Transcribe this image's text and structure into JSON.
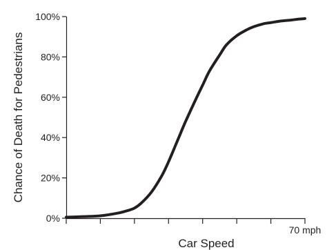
{
  "chart_data": {
    "type": "line",
    "xlabel": "Car Speed",
    "ylabel": "Chance of Death for Pedestrians",
    "xlim": [
      0,
      70
    ],
    "ylim": [
      0,
      100
    ],
    "x_ticks": [
      0,
      10,
      20,
      30,
      40,
      50,
      60,
      70
    ],
    "x_tick_labels": [
      "",
      "",
      "",
      "",
      "",
      "",
      "",
      "70 mph"
    ],
    "y_ticks": [
      0,
      20,
      40,
      60,
      80,
      100
    ],
    "y_tick_labels": [
      "0%",
      "20%",
      "40%",
      "60%",
      "80%",
      "100%"
    ],
    "grid": false,
    "series": [
      {
        "x": [
          0,
          5,
          10,
          15,
          18,
          20,
          22,
          25,
          28,
          30,
          33,
          35,
          38,
          40,
          42,
          45,
          47,
          50,
          53,
          55,
          58,
          60,
          63,
          66,
          68,
          70
        ],
        "y": [
          0.5,
          0.8,
          1.2,
          2.5,
          3.8,
          5,
          7.5,
          13,
          21,
          28,
          40,
          48,
          59,
          66,
          73,
          81,
          86,
          90.5,
          93.5,
          95,
          96.5,
          97,
          97.8,
          98.3,
          98.7,
          99
        ]
      }
    ],
    "color": "#231f20"
  }
}
